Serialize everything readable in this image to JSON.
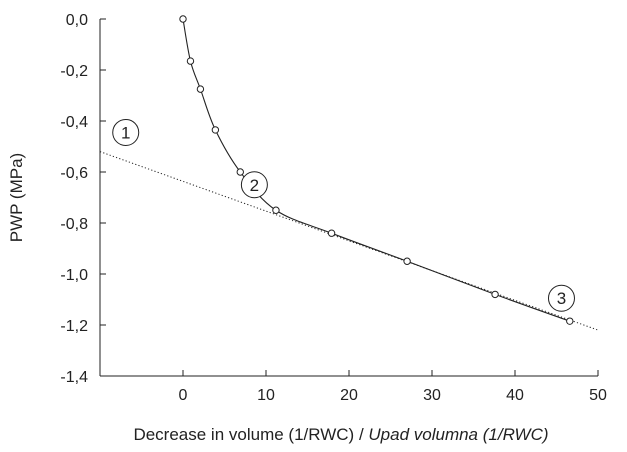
{
  "chart_data": {
    "type": "line",
    "title": "",
    "xlabel": "Decrease in volume (1/RWC)",
    "xlabel_separator": " / ",
    "xlabel_italic": "Upad volumna (1/RWC)",
    "ylabel": "PWP (MPa)",
    "xlim": [
      -10,
      50
    ],
    "ylim": [
      -1.4,
      0.0
    ],
    "x_ticks": [
      0,
      10,
      20,
      30,
      40,
      50
    ],
    "x_tick_labels": [
      "0",
      "10",
      "20",
      "30",
      "40",
      "50"
    ],
    "y_ticks": [
      0.0,
      -0.2,
      -0.4,
      -0.6,
      -0.8,
      -1.0,
      -1.2,
      -1.4
    ],
    "y_tick_labels": [
      "0,0",
      "-0,2",
      "-0,4",
      "-0,6",
      "-0,8",
      "-1,0",
      "-1,2",
      "-1,4"
    ],
    "grid": false,
    "series": [
      {
        "style": "solid line with open circle markers",
        "x": [
          0,
          0.9,
          2.1,
          3.9,
          6.9,
          11.2,
          17.9,
          27.0,
          37.6,
          46.6
        ],
        "y": [
          0.0,
          -0.165,
          -0.275,
          -0.435,
          -0.6,
          -0.75,
          -0.84,
          -0.95,
          -1.08,
          -1.185
        ]
      },
      {
        "style": "dotted linear extrapolation",
        "x": [
          -10,
          50
        ],
        "y": [
          -0.52,
          -1.22
        ]
      }
    ],
    "annotations": [
      {
        "label": "1",
        "x": -6.9,
        "y": -0.445
      },
      {
        "label": "2",
        "x": 8.6,
        "y": -0.65
      },
      {
        "label": "3",
        "x": 45.6,
        "y": -1.095
      }
    ],
    "colors": {
      "line": "#222222",
      "marker_fill": "#ffffff"
    }
  }
}
